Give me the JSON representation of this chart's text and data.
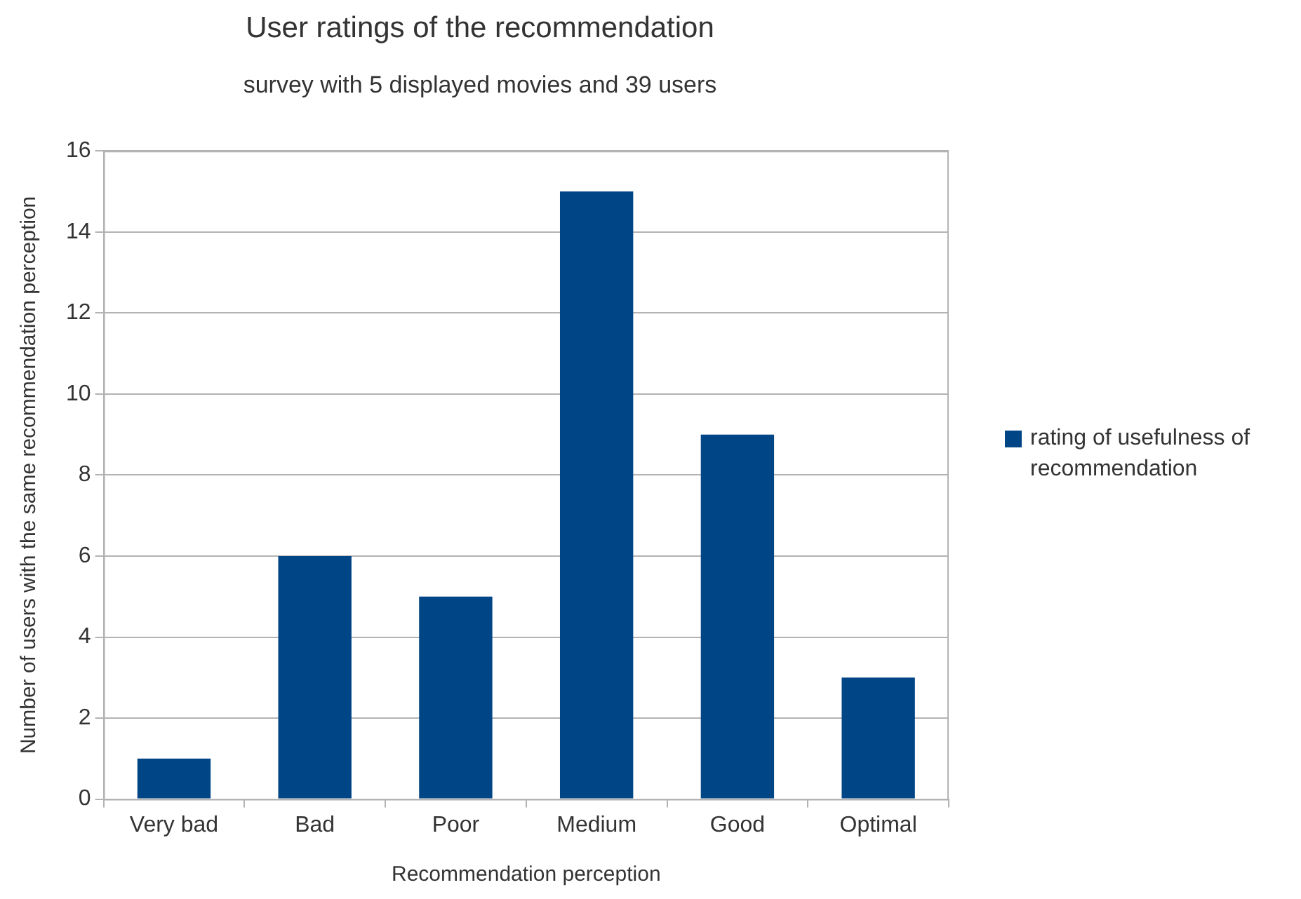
{
  "chart_data": {
    "type": "bar",
    "title": "User ratings of the recommendation",
    "subtitle": "survey with 5 displayed movies and 39 users",
    "xlabel": "Recommendation perception",
    "ylabel": "Number of users with the same recommendation perception",
    "categories": [
      "Very bad",
      "Bad",
      "Poor",
      "Medium",
      "Good",
      "Optimal"
    ],
    "series": [
      {
        "name": "rating of usefulness of recommendation",
        "color": "#004586",
        "values": [
          1,
          6,
          5,
          15,
          9,
          3
        ]
      }
    ],
    "ylim": [
      0,
      16
    ],
    "yticks": [
      0,
      2,
      4,
      6,
      8,
      10,
      12,
      14,
      16
    ],
    "grid": "y",
    "legend": "right"
  }
}
